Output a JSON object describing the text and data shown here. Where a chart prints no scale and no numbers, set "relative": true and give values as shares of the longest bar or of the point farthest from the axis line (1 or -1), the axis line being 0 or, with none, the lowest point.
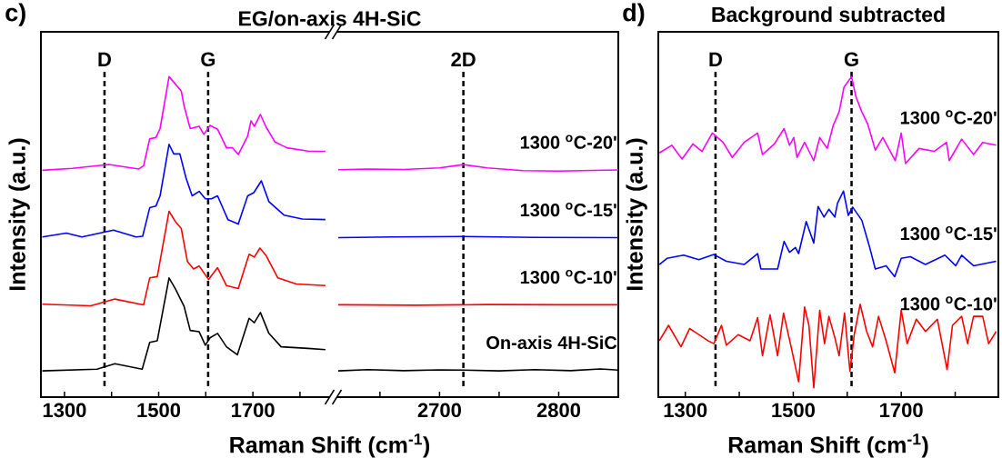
{
  "chart_data": [
    {
      "type": "line",
      "relative": true,
      "title": "EG/on-axis 4H-SiC",
      "annotations": [
        "c)"
      ],
      "xlabel": "Raman Shift (cm$^{-1}$)",
      "ylabel": "Intensity (a.u.)",
      "xlim": [
        1250,
        1860
      ],
      "xticks": [
        1300,
        {
          "value": 1400,
          "label": null
        },
        1500,
        {
          "value": 1600,
          "label": null
        },
        1700,
        {
          "value": 1800,
          "label": null
        }
      ],
      "ref_lines": [
        {
          "axis": "x",
          "value": 1385,
          "label": "D",
          "color": "#000000",
          "line_style": "dashed"
        },
        {
          "axis": "x",
          "value": 1605,
          "label": "G",
          "color": "#000000",
          "line_style": "dashed"
        }
      ],
      "series": [
        {
          "color": "#ff00ff",
          "x": [
            1253,
            1317,
            1394,
            1458,
            1468,
            1481,
            1494,
            1503,
            1522,
            1532,
            1548,
            1554,
            1567,
            1586,
            1596,
            1609,
            1625,
            1644,
            1657,
            1669,
            1689,
            1696,
            1703,
            1716,
            1728,
            1747,
            1772,
            1817,
            1854
          ],
          "values": [
            0.708,
            0.714,
            0.726,
            0.712,
            0.722,
            0.806,
            0.81,
            0.838,
            1.0,
            0.983,
            0.955,
            0.908,
            0.838,
            0.845,
            0.82,
            0.848,
            0.836,
            0.778,
            0.778,
            0.757,
            0.815,
            0.862,
            0.845,
            0.882,
            0.843,
            0.796,
            0.778,
            0.768,
            0.767
          ]
        },
        {
          "color": "#0000ff",
          "x": [
            1253,
            1304,
            1337,
            1404,
            1452,
            1466,
            1481,
            1494,
            1503,
            1522,
            1532,
            1545,
            1558,
            1571,
            1586,
            1599,
            1612,
            1625,
            1647,
            1669,
            1689,
            1702,
            1718,
            1734,
            1766,
            1805,
            1854
          ],
          "values": [
            0.5,
            0.512,
            0.5,
            0.521,
            0.5,
            0.502,
            0.591,
            0.596,
            0.628,
            0.789,
            0.759,
            0.759,
            0.684,
            0.628,
            0.642,
            0.619,
            0.619,
            0.628,
            0.554,
            0.54,
            0.628,
            0.638,
            0.675,
            0.61,
            0.568,
            0.556,
            0.554
          ]
        },
        {
          "color": "#ff0000",
          "x": [
            1253,
            1356,
            1407,
            1468,
            1481,
            1497,
            1522,
            1535,
            1548,
            1561,
            1574,
            1586,
            1606,
            1625,
            1644,
            1669,
            1692,
            1703,
            1715,
            1728,
            1753,
            1792,
            1854
          ],
          "values": [
            0.29,
            0.285,
            0.306,
            0.288,
            0.372,
            0.376,
            0.58,
            0.549,
            0.526,
            0.423,
            0.4,
            0.409,
            0.367,
            0.404,
            0.348,
            0.339,
            0.446,
            0.437,
            0.465,
            0.442,
            0.372,
            0.353,
            0.348
          ]
        },
        {
          "color": "#000000",
          "x": [
            1253,
            1369,
            1407,
            1465,
            1481,
            1497,
            1522,
            1535,
            1554,
            1567,
            1586,
            1599,
            1609,
            1625,
            1644,
            1667,
            1692,
            1703,
            1716,
            1734,
            1760,
            1817,
            1854
          ],
          "values": [
            0.082,
            0.087,
            0.104,
            0.087,
            0.171,
            0.176,
            0.372,
            0.339,
            0.283,
            0.208,
            0.204,
            0.162,
            0.185,
            0.199,
            0.157,
            0.132,
            0.246,
            0.232,
            0.264,
            0.199,
            0.157,
            0.152,
            0.148
          ]
        }
      ]
    },
    {
      "type": "line",
      "relative": true,
      "xlim": [
        2615,
        2850
      ],
      "xticks": [
        {
          "value": 2650,
          "label": null
        },
        2700,
        {
          "value": 2750,
          "label": null
        },
        2800
      ],
      "ref_lines": [
        {
          "axis": "x",
          "value": 2720,
          "label": "2D",
          "color": "#000000",
          "line_style": "dashed"
        }
      ],
      "series": [
        {
          "name": "1300 $^{o}$C-20'",
          "color": "#ff00ff",
          "x": [
            2615,
            2640,
            2670,
            2700,
            2720,
            2740,
            2770,
            2800,
            2830,
            2850
          ],
          "values": [
            0.978,
            0.981,
            0.979,
            0.986,
            1.0,
            0.986,
            0.974,
            0.972,
            0.975,
            0.977
          ]
        },
        {
          "name": "1300 $^{o}$C-15'",
          "color": "#0000ff",
          "x": [
            2615,
            2660,
            2720,
            2780,
            2850
          ],
          "values": [
            0.686,
            0.689,
            0.691,
            0.687,
            0.686
          ]
        },
        {
          "name": "1300 $^{o}$C-10'",
          "color": "#ff0000",
          "x": [
            2615,
            2680,
            2740,
            2800,
            2850
          ],
          "values": [
            0.397,
            0.395,
            0.398,
            0.397,
            0.397
          ]
        },
        {
          "name": "On-axis 4H-SiC",
          "color": "#000000",
          "x": [
            2615,
            2640,
            2670,
            2700,
            2720,
            2750,
            2780,
            2810,
            2835,
            2850
          ],
          "values": [
            0.113,
            0.118,
            0.114,
            0.117,
            0.116,
            0.113,
            0.118,
            0.114,
            0.121,
            0.116
          ]
        }
      ]
    },
    {
      "type": "line",
      "relative": true,
      "title": "Background subtracted",
      "annotations": [
        "d)"
      ],
      "xlabel": "Raman Shift (cm$^{-1}$)",
      "ylabel": "Intensity (a.u.)",
      "xlim": [
        1250,
        1880
      ],
      "xticks": [
        1300,
        {
          "value": 1400,
          "label": null
        },
        1500,
        {
          "value": 1600,
          "label": null
        },
        1700,
        {
          "value": 1800,
          "label": null
        }
      ],
      "ref_lines": [
        {
          "axis": "x",
          "value": 1356,
          "label": "D",
          "color": "#000000",
          "line_style": "dashed"
        },
        {
          "axis": "x",
          "value": 1608,
          "label": "G",
          "color": "#000000",
          "line_style": "dashed"
        }
      ],
      "series": [
        {
          "name": "1300 $^{o}$C-20'",
          "color": "#ff00ff",
          "x": [
            1252,
            1275,
            1294,
            1314,
            1331,
            1350,
            1370,
            1387,
            1409,
            1434,
            1443,
            1465,
            1483,
            1493,
            1501,
            1507,
            1521,
            1538,
            1549,
            1563,
            1574,
            1585,
            1594,
            1608,
            1616,
            1627,
            1638,
            1652,
            1666,
            1689,
            1700,
            1708,
            1733,
            1761,
            1784,
            1789,
            1812,
            1834,
            1851,
            1876
          ],
          "values": [
            0.762,
            0.786,
            0.743,
            0.79,
            0.767,
            0.824,
            0.795,
            0.748,
            0.795,
            0.824,
            0.757,
            0.79,
            0.838,
            0.786,
            0.81,
            0.748,
            0.795,
            0.738,
            0.81,
            0.776,
            0.848,
            0.89,
            0.967,
            1.0,
            0.938,
            0.89,
            0.852,
            0.771,
            0.81,
            0.738,
            0.824,
            0.729,
            0.776,
            0.767,
            0.795,
            0.738,
            0.805,
            0.757,
            0.795,
            0.786
          ]
        },
        {
          "name": "1300 $^{o}$C-15'",
          "color": "#0000ff",
          "x": [
            1252,
            1266,
            1297,
            1325,
            1353,
            1376,
            1409,
            1434,
            1440,
            1471,
            1483,
            1493,
            1504,
            1510,
            1524,
            1538,
            1546,
            1557,
            1566,
            1577,
            1582,
            1593,
            1602,
            1610,
            1627,
            1641,
            1652,
            1672,
            1688,
            1700,
            1717,
            1745,
            1781,
            1801,
            1812,
            1834,
            1876
          ],
          "values": [
            0.414,
            0.433,
            0.443,
            0.429,
            0.445,
            0.424,
            0.414,
            0.448,
            0.4,
            0.4,
            0.486,
            0.452,
            0.467,
            0.448,
            0.548,
            0.481,
            0.595,
            0.562,
            0.586,
            0.562,
            0.605,
            0.643,
            0.567,
            0.593,
            0.552,
            0.471,
            0.4,
            0.41,
            0.376,
            0.433,
            0.438,
            0.414,
            0.443,
            0.41,
            0.443,
            0.41,
            0.424
          ]
        },
        {
          "name": "1300 $^{o}$C-10'",
          "color": "#ff0000",
          "x": [
            1252,
            1269,
            1292,
            1308,
            1342,
            1353,
            1367,
            1376,
            1398,
            1420,
            1434,
            1443,
            1457,
            1471,
            1482,
            1496,
            1510,
            1521,
            1529,
            1538,
            1549,
            1558,
            1566,
            1577,
            1585,
            1595,
            1605,
            1613,
            1624,
            1636,
            1647,
            1658,
            1672,
            1688,
            1700,
            1711,
            1728,
            1745,
            1767,
            1785,
            1795,
            1812,
            1823,
            1834,
            1851,
            1862,
            1876
          ],
          "values": [
            0.176,
            0.224,
            0.157,
            0.214,
            0.176,
            0.167,
            0.224,
            0.162,
            0.195,
            0.176,
            0.248,
            0.129,
            0.257,
            0.129,
            0.262,
            0.157,
            0.048,
            0.281,
            0.224,
            0.029,
            0.271,
            0.167,
            0.252,
            0.186,
            0.129,
            0.262,
            0.081,
            0.195,
            0.29,
            0.205,
            0.157,
            0.252,
            0.176,
            0.076,
            0.271,
            0.167,
            0.243,
            0.205,
            0.243,
            0.086,
            0.224,
            0.252,
            0.167,
            0.252,
            0.252,
            0.167,
            0.205
          ]
        }
      ]
    }
  ]
}
